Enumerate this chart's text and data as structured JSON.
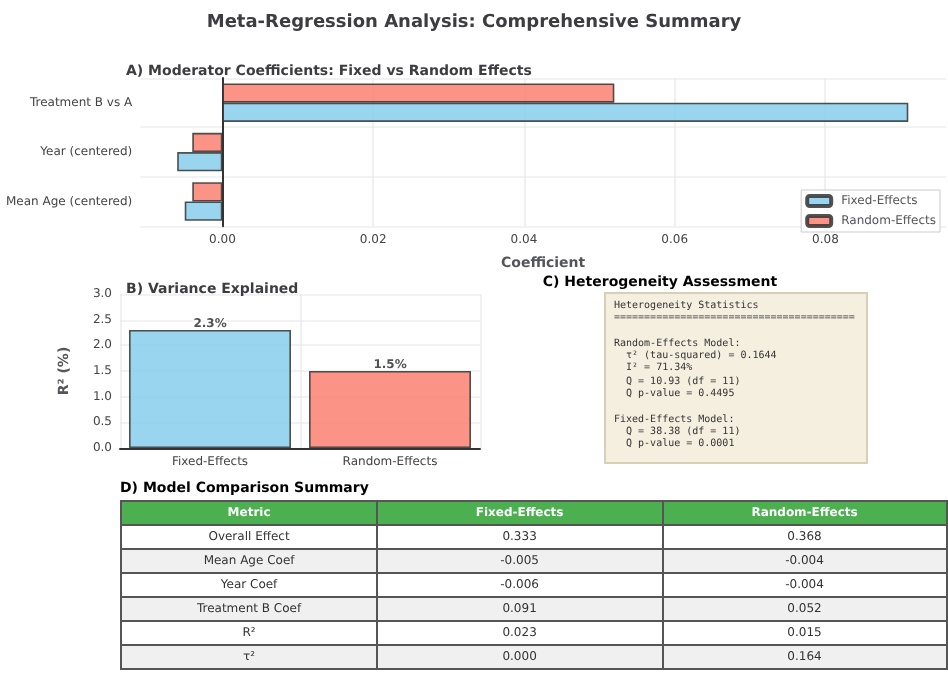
{
  "chart_data": [
    {
      "type": "bar",
      "orientation": "horizontal",
      "title": "Meta-Regression Analysis: Comprehensive Summary",
      "subtitle": "A) Moderator Coefficients: Fixed vs Random Effects",
      "xlabel": "Coefficient",
      "categories": [
        "Treatment B vs A",
        "Year (centered)",
        "Mean Age (centered)"
      ],
      "series": [
        {
          "name": "Fixed-Effects",
          "color": "#87ceeb",
          "values": [
            0.091,
            -0.006,
            -0.005
          ]
        },
        {
          "name": "Random-Effects",
          "color": "#fa8072",
          "values": [
            0.052,
            -0.004,
            -0.004
          ]
        }
      ],
      "xlim": [
        -0.0109,
        0.096
      ],
      "xticks": [
        {
          "value": 0,
          "label": "0.00"
        },
        {
          "value": 0.02,
          "label": "0.02"
        },
        {
          "value": 0.04,
          "label": "0.04"
        },
        {
          "value": 0.06,
          "label": "0.06"
        },
        {
          "value": 0.08,
          "label": "0.08"
        }
      ],
      "grid": true,
      "legend": "bottom right"
    },
    {
      "type": "bar",
      "title": "B) Variance Explained",
      "ylabel": "R² (%)",
      "categories": [
        "Fixed-Effects",
        "Random-Effects"
      ],
      "values": [
        2.3,
        1.5
      ],
      "value_labels": [
        "2.3%",
        "1.5%"
      ],
      "colors": [
        "#87ceeb",
        "#fa8072"
      ],
      "ylim": [
        0,
        3
      ],
      "yticks": [
        {
          "value": 0,
          "label": "0.0"
        },
        {
          "value": 0.5,
          "label": "0.5"
        },
        {
          "value": 1,
          "label": "1.0"
        },
        {
          "value": 1.5,
          "label": "1.5"
        },
        {
          "value": 2,
          "label": "2.0"
        },
        {
          "value": 2.5,
          "label": "2.5"
        },
        {
          "value": 3,
          "label": "3.0"
        }
      ],
      "grid": true
    },
    {
      "type": "other",
      "title": "C) Heterogeneity Assessment",
      "annotations": [
        "Heterogeneity Statistics\n========================================",
        "Random-Effects Model:\n  τ² (tau-squared) = 0.1644\n  I² = 71.34%\n  Q = 10.93 (df = 11)\n  Q p-value = 0.4495",
        "Fixed-Effects Model:\n  Q = 38.38 (df = 11)\n  Q p-value = 0.0001"
      ]
    },
    {
      "type": "other",
      "title": "D) Model Comparison Summary",
      "annotations": [
        "Metric"
      ],
      "categories": [
        "Overall Effect",
        "Mean Age Coef",
        "Year Coef",
        "Treatment B Coef",
        "R²",
        "τ²"
      ],
      "series": [
        {
          "name": "Fixed-Effects",
          "colors": [
            "#ffffff",
            "#f0f0f0",
            "#ffffff",
            "#f0f0f0",
            "#ffffff",
            "#f0f0f0"
          ],
          "values": [
            0.333,
            -0.005,
            -0.006,
            0.091,
            0.023,
            0
          ],
          "value_labels": [
            "0.333",
            "-0.005",
            "-0.006",
            "0.091",
            "0.023",
            "0.000"
          ]
        },
        {
          "name": "Random-Effects",
          "colors": [
            "#ffffff",
            "#f0f0f0",
            "#ffffff",
            "#f0f0f0",
            "#ffffff",
            "#f0f0f0"
          ],
          "values": [
            0.368,
            -0.004,
            -0.004,
            0.052,
            0.015,
            0.164
          ],
          "value_labels": [
            "0.368",
            "-0.004",
            "-0.004",
            "0.052",
            "0.015",
            "0.164"
          ]
        }
      ]
    }
  ]
}
